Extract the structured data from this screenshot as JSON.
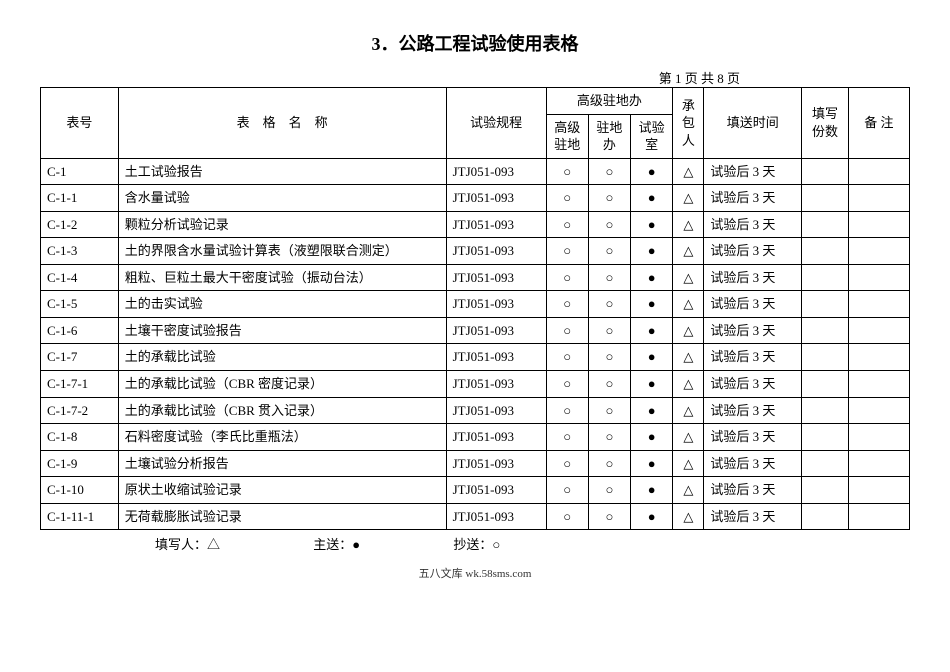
{
  "title": "3．公路工程试验使用表格",
  "pageInfo": "第 1 页 共 8 页",
  "headers": {
    "code": "表号",
    "name": "表　格　名　称",
    "spec": "试验规程",
    "highLevelGroup": "高级驻地办",
    "hl1": "高级\n驻地",
    "hl2": "驻地\n办",
    "hl3": "试验\n室",
    "contractor": "承\n包\n人",
    "time": "填送时间",
    "copies": "填写\n份数",
    "remark": "备  注"
  },
  "symbols": {
    "circle": "○",
    "filled": "●",
    "triangle": "△"
  },
  "spec": "JTJ051-093",
  "time": "试验后 3 天",
  "rows": [
    {
      "code": "C-1",
      "name": "土工试验报告"
    },
    {
      "code": "C-1-1",
      "name": "含水量试验"
    },
    {
      "code": "C-1-2",
      "name": "颗粒分析试验记录"
    },
    {
      "code": "C-1-3",
      "name": "土的界限含水量试验计算表（液塑限联合测定）"
    },
    {
      "code": "C-1-4",
      "name": "粗粒、巨粒土最大干密度试验（振动台法）"
    },
    {
      "code": "C-1-5",
      "name": "土的击实试验"
    },
    {
      "code": "C-1-6",
      "name": "土壤干密度试验报告"
    },
    {
      "code": "C-1-7",
      "name": "土的承载比试验"
    },
    {
      "code": "C-1-7-1",
      "name": "土的承载比试验（CBR 密度记录）"
    },
    {
      "code": "C-1-7-2",
      "name": "土的承载比试验（CBR 贯入记录）"
    },
    {
      "code": "C-1-8",
      "name": "石料密度试验（李氏比重瓶法）"
    },
    {
      "code": "C-1-9",
      "name": "土壤试验分析报告"
    },
    {
      "code": "C-1-10",
      "name": "原状土收缩试验记录"
    },
    {
      "code": "C-1-11-1",
      "name": "无荷载膨胀试验记录"
    }
  ],
  "legend": {
    "filler": "填写人：△",
    "mainSend": "主送：●",
    "copySend": "抄送：○"
  },
  "footer": "五八文库 wk.58sms.com",
  "colors": {
    "background": "#ffffff",
    "text": "#000000",
    "border": "#000000"
  }
}
